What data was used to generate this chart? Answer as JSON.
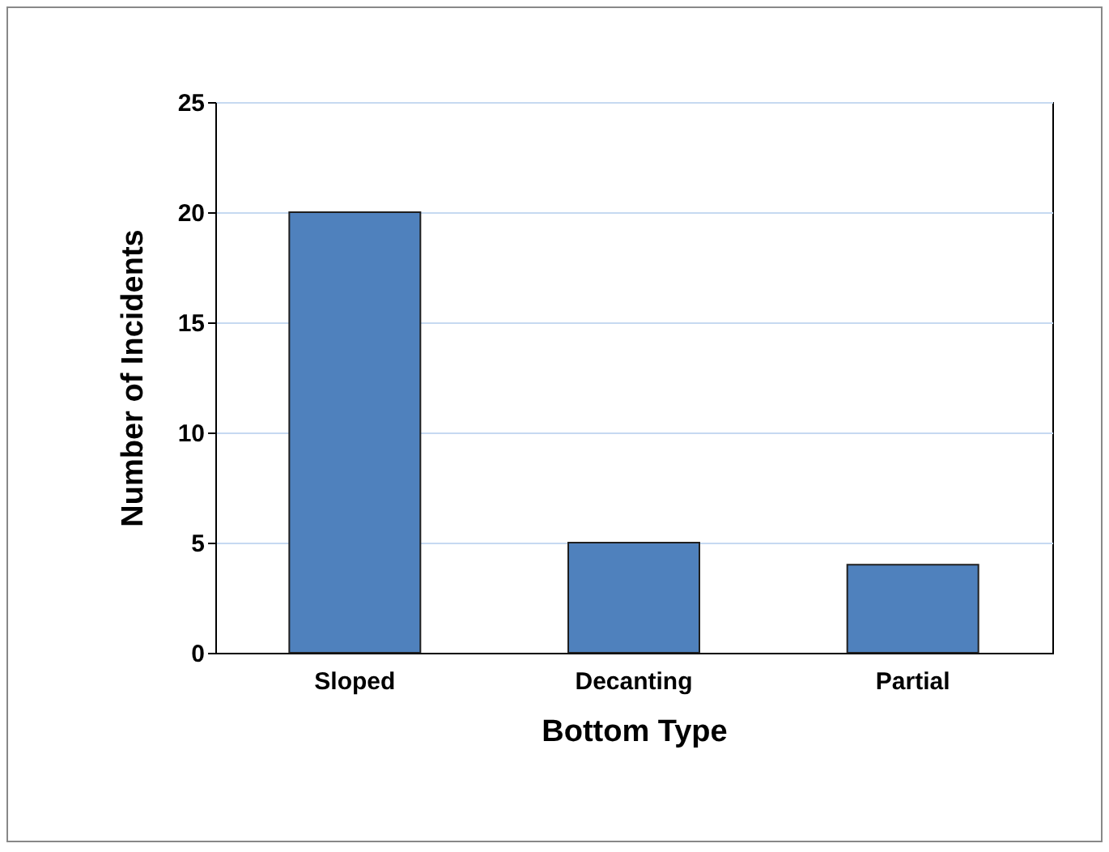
{
  "chart_data": {
    "type": "bar",
    "xlabel": "Bottom Type",
    "ylabel": "Number of Incidents",
    "categories": [
      "Sloped",
      "Decanting",
      "Partial"
    ],
    "values": [
      20,
      5,
      4
    ],
    "color": "#4f81bd",
    "ylim": [
      0,
      25
    ],
    "yticks": [
      0,
      5,
      10,
      15,
      20,
      25
    ],
    "grid": "y"
  }
}
